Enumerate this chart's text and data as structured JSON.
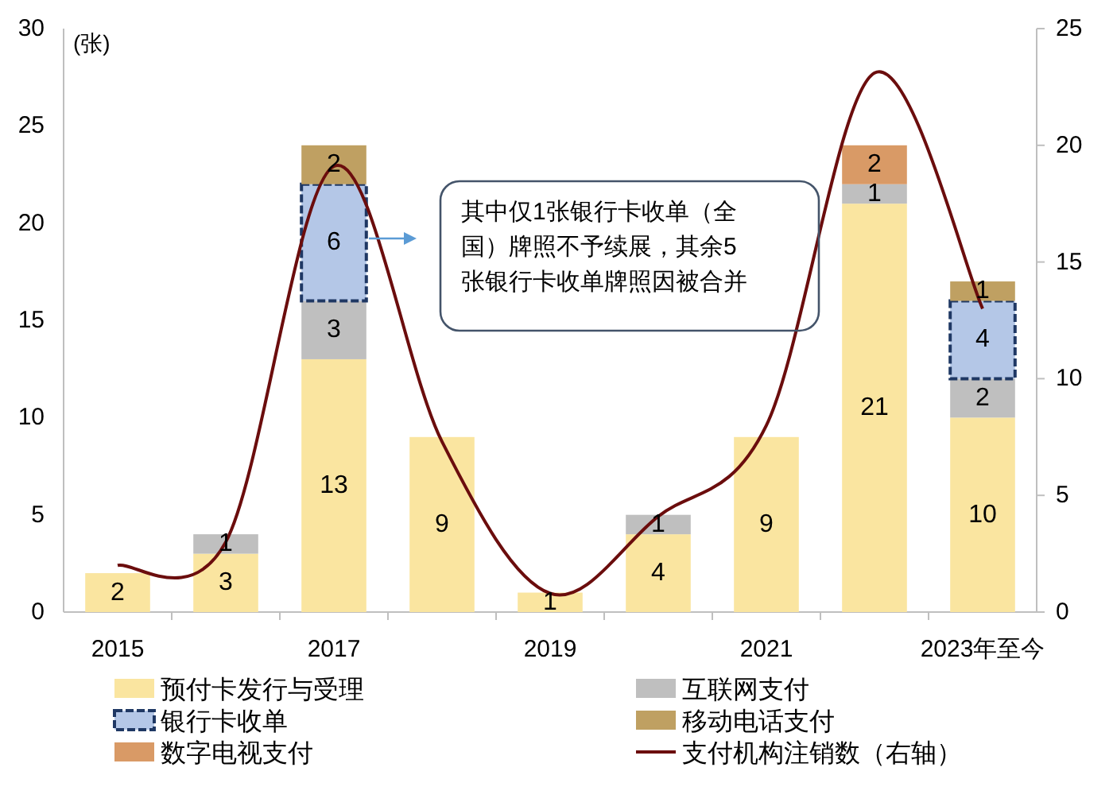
{
  "chart_data": {
    "type": "bar",
    "stacked": true,
    "legend": "bottom",
    "ylabel": "(张)",
    "categories": [
      "2015",
      null,
      "2017",
      null,
      "2019",
      null,
      "2021",
      null,
      "2023年至今"
    ],
    "series": [
      {
        "name": "预付卡发行与受理",
        "color": "#fae5a0",
        "values": [
          2,
          3,
          13,
          9,
          1,
          4,
          9,
          21,
          10
        ],
        "value_labels": [
          "2",
          "3",
          "13",
          "9",
          "1",
          "4",
          "9",
          "21",
          "10"
        ]
      },
      {
        "name": "互联网支付",
        "color": "#bfbfbf",
        "values": [
          null,
          1,
          3,
          null,
          null,
          1,
          null,
          1,
          2
        ],
        "value_labels": [
          null,
          "1",
          "3",
          null,
          null,
          "1",
          null,
          "1",
          "2"
        ]
      },
      {
        "name": "银行卡收单",
        "color": "#b4c7e7",
        "line_style": "dashed",
        "values": [
          null,
          null,
          6,
          null,
          null,
          null,
          null,
          null,
          4
        ],
        "value_labels": [
          null,
          null,
          "6",
          null,
          null,
          null,
          null,
          null,
          "4"
        ]
      },
      {
        "name": "移动电话支付",
        "color": "#bfa062",
        "values": [
          null,
          null,
          2,
          null,
          null,
          null,
          null,
          null,
          1
        ],
        "value_labels": [
          null,
          null,
          "2",
          null,
          null,
          null,
          null,
          null,
          "1"
        ]
      },
      {
        "name": "数字电视支付",
        "color": "#d99a66",
        "values": [
          null,
          null,
          null,
          null,
          null,
          null,
          null,
          2,
          null
        ],
        "value_labels": [
          null,
          null,
          null,
          null,
          null,
          null,
          null,
          "2",
          null
        ]
      },
      {
        "name": "支付机构注销数（右轴）",
        "type": "line",
        "axis": "y2",
        "color": "#6b0d0d",
        "values": [
          2.0,
          3.0,
          19.1,
          7.3,
          0.8,
          4.1,
          8.0,
          23.1,
          13.0
        ]
      }
    ],
    "ylim": [
      0,
      30
    ],
    "yticks": [
      0,
      5,
      10,
      15,
      20,
      25,
      30
    ],
    "y2lim": [
      0,
      25
    ],
    "y2ticks": [
      0,
      5,
      10,
      15,
      20,
      25
    ],
    "annotations": [
      "其中仅1张银行卡收单（全国）牌照不予续展，其余5张银行卡收单牌照因被合并"
    ]
  }
}
